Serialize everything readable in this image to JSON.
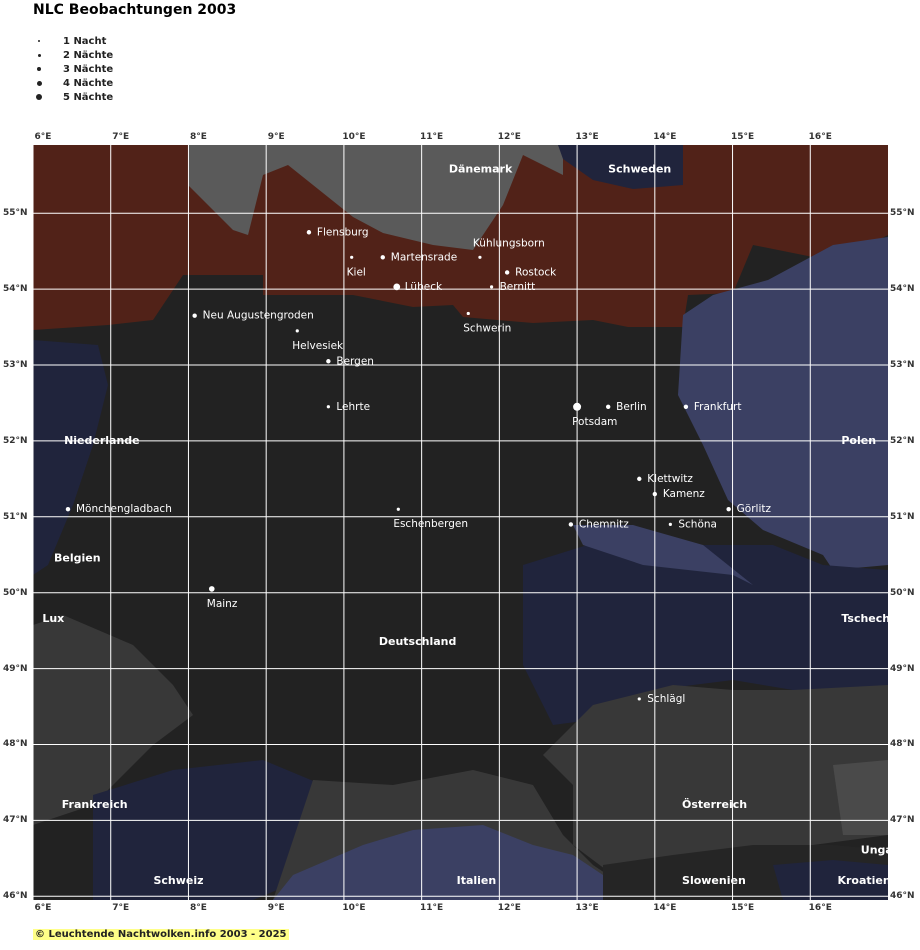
{
  "title": "NLC Beobachtungen 2003",
  "legend": [
    {
      "label": "1 Nacht",
      "nights": 1
    },
    {
      "label": "2 Nächte",
      "nights": 2
    },
    {
      "label": "3 Nächte",
      "nights": 3
    },
    {
      "label": "4 Nächte",
      "nights": 4
    },
    {
      "label": "5 Nächte",
      "nights": 5
    }
  ],
  "axes": {
    "x_ticks": [
      "6°E",
      "7°E",
      "8°E",
      "9°E",
      "10°E",
      "11°E",
      "12°E",
      "13°E",
      "14°E",
      "15°E",
      "16°E"
    ],
    "y_ticks": [
      "55°N",
      "54°N",
      "53°N",
      "52°N",
      "51°N",
      "50°N",
      "49°N",
      "48°N",
      "47°N",
      "46°N"
    ],
    "lon_range": [
      6.0,
      17.0
    ],
    "lat_range": [
      45.95,
      55.9
    ]
  },
  "colors": {
    "land": "#222222",
    "sea": "#512218",
    "mountain": "#383838",
    "baltic_north": "#5a5a5a",
    "slate": "#3b4063",
    "navy": "#20243c",
    "grid": "#ffffff",
    "label": "#ffffff"
  },
  "countries": [
    {
      "name": "Dänemark",
      "lon": 11.35,
      "lat": 55.58
    },
    {
      "name": "Schweden",
      "lon": 13.4,
      "lat": 55.58
    },
    {
      "name": "Niederlande",
      "lon": 6.4,
      "lat": 52.0
    },
    {
      "name": "Polen",
      "lon": 16.4,
      "lat": 52.0
    },
    {
      "name": "Belgien",
      "lon": 6.27,
      "lat": 50.45
    },
    {
      "name": "Lux",
      "lon": 6.12,
      "lat": 49.65
    },
    {
      "name": "Tschechien",
      "lon": 16.4,
      "lat": 49.65
    },
    {
      "name": "Deutschland",
      "lon": 10.45,
      "lat": 49.35
    },
    {
      "name": "Frankreich",
      "lon": 6.37,
      "lat": 47.2
    },
    {
      "name": "Österreich",
      "lon": 14.35,
      "lat": 47.2
    },
    {
      "name": "Ungarn",
      "lon": 16.65,
      "lat": 46.6
    },
    {
      "name": "Schweiz",
      "lon": 7.55,
      "lat": 46.2
    },
    {
      "name": "Italien",
      "lon": 11.45,
      "lat": 46.2
    },
    {
      "name": "Slowenien",
      "lon": 14.35,
      "lat": 46.2
    },
    {
      "name": "Kroatien",
      "lon": 16.35,
      "lat": 46.2
    }
  ],
  "stations": [
    {
      "name": "Flensburg",
      "lon": 9.55,
      "lat": 54.75,
      "nights": 2,
      "anchor": "right"
    },
    {
      "name": "Kiel",
      "lon": 10.1,
      "lat": 54.42,
      "nights": 1,
      "anchor": "below"
    },
    {
      "name": "Martensrade",
      "lon": 10.5,
      "lat": 54.42,
      "nights": 2,
      "anchor": "right"
    },
    {
      "name": "Kühlungsborn",
      "lon": 11.75,
      "lat": 54.42,
      "nights": 1,
      "anchor": "above"
    },
    {
      "name": "Rostock",
      "lon": 12.1,
      "lat": 54.22,
      "nights": 2,
      "anchor": "right"
    },
    {
      "name": "Lübeck",
      "lon": 10.68,
      "lat": 54.03,
      "nights": 4,
      "anchor": "right"
    },
    {
      "name": "Bernitt",
      "lon": 11.9,
      "lat": 54.03,
      "nights": 1,
      "anchor": "right"
    },
    {
      "name": "Schwerin",
      "lon": 11.6,
      "lat": 53.68,
      "nights": 1,
      "anchor": "below"
    },
    {
      "name": "Neu Augustengroden",
      "lon": 8.08,
      "lat": 53.65,
      "nights": 2,
      "anchor": "right"
    },
    {
      "name": "Helvesiek",
      "lon": 9.4,
      "lat": 53.45,
      "nights": 1,
      "anchor": "below"
    },
    {
      "name": "Bergen",
      "lon": 9.8,
      "lat": 53.05,
      "nights": 2,
      "anchor": "right"
    },
    {
      "name": "Lehrte",
      "lon": 9.8,
      "lat": 52.45,
      "nights": 1,
      "anchor": "right"
    },
    {
      "name": "Potsdam",
      "lon": 13.0,
      "lat": 52.45,
      "nights": 5,
      "anchor": "below"
    },
    {
      "name": "Berlin",
      "lon": 13.4,
      "lat": 52.45,
      "nights": 2,
      "anchor": "right"
    },
    {
      "name": "Frankfurt",
      "lon": 14.4,
      "lat": 52.45,
      "nights": 2,
      "anchor": "right"
    },
    {
      "name": "Klettwitz",
      "lon": 13.8,
      "lat": 51.5,
      "nights": 2,
      "anchor": "right"
    },
    {
      "name": "Kamenz",
      "lon": 14.0,
      "lat": 51.3,
      "nights": 2,
      "anchor": "right"
    },
    {
      "name": "Görlitz",
      "lon": 14.95,
      "lat": 51.1,
      "nights": 2,
      "anchor": "right"
    },
    {
      "name": "Mönchengladbach",
      "lon": 6.45,
      "lat": 51.1,
      "nights": 2,
      "anchor": "right"
    },
    {
      "name": "Eschenbergen",
      "lon": 10.7,
      "lat": 51.1,
      "nights": 1,
      "anchor": "below"
    },
    {
      "name": "Chemnitz",
      "lon": 12.92,
      "lat": 50.9,
      "nights": 2,
      "anchor": "right"
    },
    {
      "name": "Schöna",
      "lon": 14.2,
      "lat": 50.9,
      "nights": 1,
      "anchor": "right"
    },
    {
      "name": "Mainz",
      "lon": 8.3,
      "lat": 50.05,
      "nights": 3,
      "anchor": "below"
    },
    {
      "name": "Schlägl",
      "lon": 13.8,
      "lat": 48.6,
      "nights": 1,
      "anchor": "right"
    }
  ],
  "copyright": "© Leuchtende Nachtwolken.info 2003 - 2025"
}
